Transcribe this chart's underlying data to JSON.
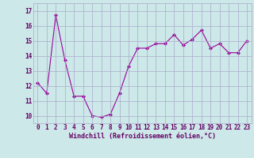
{
  "x": [
    0,
    1,
    2,
    3,
    4,
    5,
    6,
    7,
    8,
    9,
    10,
    11,
    12,
    13,
    14,
    15,
    16,
    17,
    18,
    19,
    20,
    21,
    22,
    23
  ],
  "y": [
    12.2,
    11.5,
    16.7,
    13.7,
    11.3,
    11.3,
    10.0,
    9.9,
    10.1,
    11.5,
    13.3,
    14.5,
    14.5,
    14.8,
    14.8,
    15.4,
    14.7,
    15.1,
    15.7,
    14.5,
    14.8,
    14.2,
    14.2,
    15.0
  ],
  "line_color": "#990099",
  "marker": "D",
  "marker_size": 2.0,
  "bg_color": "#cce8e8",
  "grid_color": "#aaaacc",
  "xlabel": "Windchill (Refroidissement éolien,°C)",
  "xlabel_color": "#660066",
  "tick_color": "#660066",
  "ylim": [
    9.5,
    17.5
  ],
  "xlim": [
    -0.5,
    23.5
  ],
  "yticks": [
    10,
    11,
    12,
    13,
    14,
    15,
    16,
    17
  ],
  "xticks": [
    0,
    1,
    2,
    3,
    4,
    5,
    6,
    7,
    8,
    9,
    10,
    11,
    12,
    13,
    14,
    15,
    16,
    17,
    18,
    19,
    20,
    21,
    22,
    23
  ],
  "label_fontsize": 6.0,
  "tick_fontsize": 5.5
}
